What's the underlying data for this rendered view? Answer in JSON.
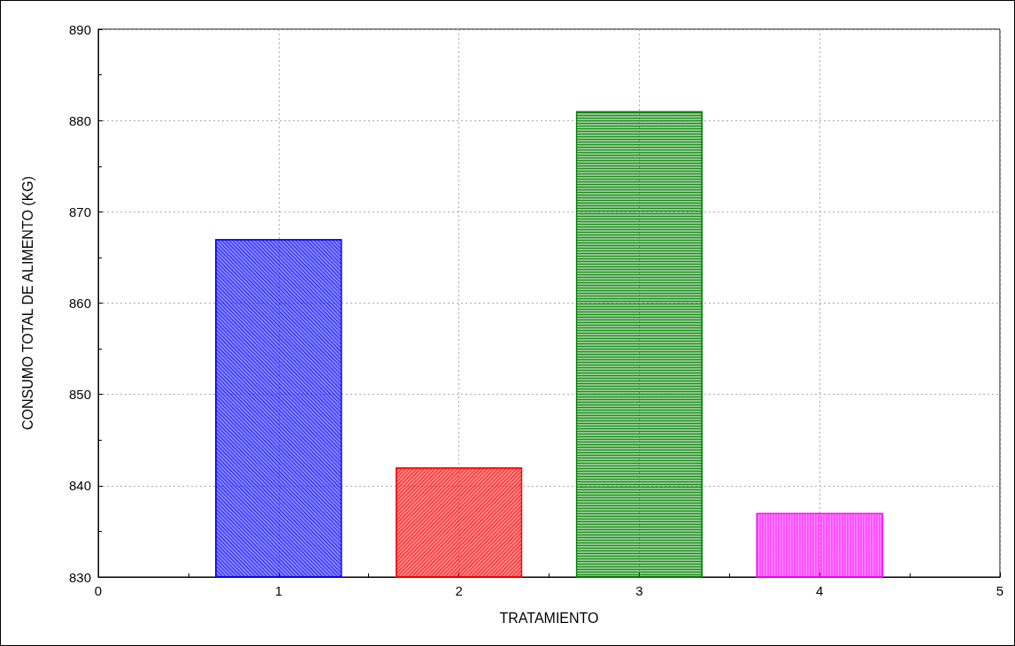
{
  "chart_data": {
    "type": "bar",
    "xlabel": "TRATAMIENTO",
    "ylabel": "CONSUMO TOTAL DE ALIMENTO (KG)",
    "x": [
      1,
      2,
      3,
      4
    ],
    "values": [
      867,
      842,
      881,
      837
    ],
    "colors": [
      "#0000ff",
      "#ff0000",
      "#008000",
      "#ff00ff"
    ],
    "xlim": [
      0,
      5
    ],
    "xticks": [
      0,
      1,
      2,
      3,
      4,
      5
    ],
    "ylim": [
      830,
      890
    ],
    "yticks": [
      830,
      840,
      850,
      860,
      870,
      880,
      890
    ],
    "grid": true
  }
}
